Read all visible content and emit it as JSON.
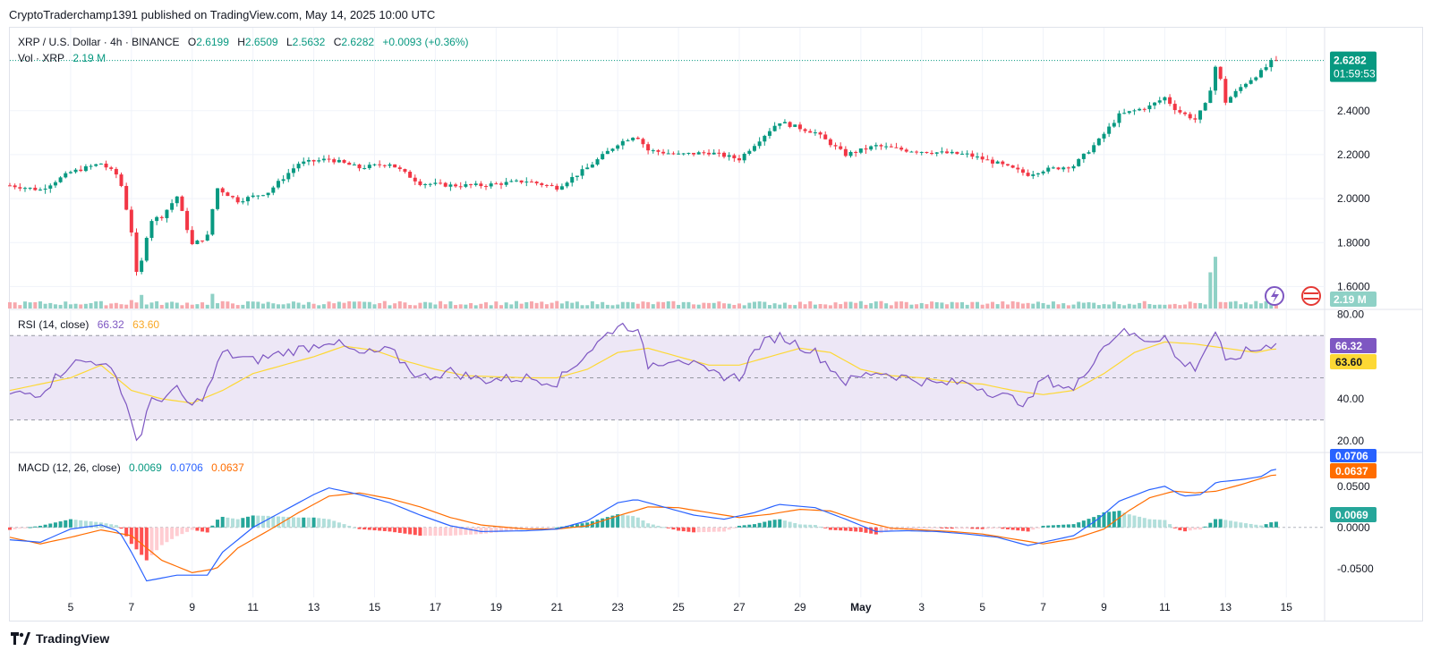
{
  "header": {
    "publisher_line": "CryptoTraderchamp1391 published on TradingView.com, May 14, 2025 10:00 UTC"
  },
  "footer": {
    "brand": "TradingView"
  },
  "colors": {
    "up": "#089981",
    "down": "#F23645",
    "vol_up": "#8fd1c6",
    "vol_down": "#f7a8ad",
    "rsi_line": "#7e57c2",
    "rsi_ma": "#fdd835",
    "rsi_band": "#ede7f6",
    "macd_line": "#2962ff",
    "signal_line": "#ff6d00",
    "hist_up_strong": "#26a69a",
    "hist_up_weak": "#b2dfdb",
    "hist_down_strong": "#ff5252",
    "hist_down_weak": "#ffcdd2",
    "grid": "#f0f3fa",
    "axis_text": "#131722"
  },
  "legend": {
    "symbol": "XRP / U.S. Dollar · 4h · BINANCE",
    "o_label": "O",
    "o_value": "2.6199",
    "h_label": "H",
    "h_value": "2.6509",
    "l_label": "L",
    "l_value": "2.5632",
    "c_label": "C",
    "c_value": "2.6282",
    "change": "+0.0093 (+0.36%)",
    "vol_label": "Vol · XRP",
    "vol_value": "2.19 M"
  },
  "rsi_legend": {
    "label": "RSI (14, close)",
    "value": "66.32",
    "ma_value": "63.60"
  },
  "macd_legend": {
    "label": "MACD (12, 26, close)",
    "hist_value": "0.0069",
    "macd_value": "0.0706",
    "signal_value": "0.0637"
  },
  "price_badge": {
    "value": "2.6282",
    "countdown": "01:59:53"
  },
  "vol_badge": "2.19 M",
  "rsi_badges": {
    "rsi": "66.32",
    "ma": "63.60"
  },
  "macd_badges": {
    "macd": "0.0706",
    "signal": "0.0637",
    "hist": "0.0069"
  },
  "chart_data": [
    {
      "type": "candlestick",
      "title": "XRP / U.S. Dollar · 4h · BINANCE",
      "y_ticks": [
        "2.4000",
        "2.2000",
        "2.0000",
        "1.8000",
        "1.6000"
      ],
      "ylim": [
        1.5,
        2.7
      ],
      "x_ticks": [
        "5",
        "7",
        "9",
        "11",
        "13",
        "15",
        "17",
        "19",
        "21",
        "23",
        "25",
        "27",
        "29",
        "May",
        "3",
        "5",
        "7",
        "9",
        "11",
        "13",
        "15"
      ],
      "x_tick_days": [
        5,
        7,
        9,
        11,
        13,
        15,
        17,
        19,
        21,
        23,
        25,
        27,
        29,
        31,
        33,
        35,
        37,
        39,
        41,
        43,
        45
      ],
      "x_range_days": [
        3.0,
        46.2
      ],
      "close_anchors": [
        [
          3.0,
          2.06
        ],
        [
          4.0,
          2.04
        ],
        [
          5.0,
          2.12
        ],
        [
          6.0,
          2.16
        ],
        [
          6.6,
          2.1
        ],
        [
          7.0,
          1.85
        ],
        [
          7.2,
          1.62
        ],
        [
          7.6,
          1.9
        ],
        [
          8.0,
          1.92
        ],
        [
          8.5,
          2.01
        ],
        [
          9.0,
          1.79
        ],
        [
          9.5,
          1.83
        ],
        [
          9.8,
          2.05
        ],
        [
          10.5,
          1.99
        ],
        [
          11.5,
          2.03
        ],
        [
          12.5,
          2.16
        ],
        [
          13.5,
          2.18
        ],
        [
          14.5,
          2.14
        ],
        [
          15.5,
          2.16
        ],
        [
          16.5,
          2.07
        ],
        [
          17.5,
          2.06
        ],
        [
          18.5,
          2.06
        ],
        [
          20.0,
          2.08
        ],
        [
          21.0,
          2.05
        ],
        [
          22.0,
          2.14
        ],
        [
          23.0,
          2.25
        ],
        [
          23.6,
          2.29
        ],
        [
          24.0,
          2.22
        ],
        [
          25.0,
          2.2
        ],
        [
          26.0,
          2.21
        ],
        [
          27.0,
          2.18
        ],
        [
          27.6,
          2.26
        ],
        [
          28.3,
          2.35
        ],
        [
          29.5,
          2.3
        ],
        [
          30.5,
          2.2
        ],
        [
          31.5,
          2.24
        ],
        [
          32.5,
          2.22
        ],
        [
          33.5,
          2.21
        ],
        [
          34.5,
          2.2
        ],
        [
          35.5,
          2.16
        ],
        [
          36.5,
          2.11
        ],
        [
          37.0,
          2.13
        ],
        [
          38.0,
          2.15
        ],
        [
          38.8,
          2.26
        ],
        [
          39.5,
          2.38
        ],
        [
          40.5,
          2.42
        ],
        [
          41.0,
          2.46
        ],
        [
          41.4,
          2.4
        ],
        [
          42.0,
          2.36
        ],
        [
          42.4,
          2.44
        ],
        [
          42.7,
          2.62
        ],
        [
          43.0,
          2.44
        ],
        [
          43.6,
          2.52
        ],
        [
          44.2,
          2.58
        ],
        [
          44.55,
          2.6282
        ]
      ],
      "last_close": 2.6282
    },
    {
      "type": "bar",
      "title": "Vol · XRP",
      "spikes": [
        [
          7.0,
          1.6
        ],
        [
          7.3,
          2.5
        ],
        [
          9.7,
          2.3
        ],
        [
          42.5,
          5.0
        ],
        [
          42.7,
          9.0
        ]
      ],
      "last_value": "2.19 M"
    },
    {
      "type": "line",
      "title": "RSI (14, close)",
      "y_ticks": [
        "80.00",
        "40.00",
        "20.00"
      ],
      "ylim": [
        15,
        82
      ],
      "bands": [
        70,
        50,
        30
      ],
      "series": [
        {
          "name": "RSI",
          "anchors": [
            [
              3.0,
              42
            ],
            [
              4.0,
              43
            ],
            [
              5.0,
              57
            ],
            [
              6.0,
              58
            ],
            [
              6.6,
              48
            ],
            [
              7.0,
              30
            ],
            [
              7.2,
              18
            ],
            [
              7.6,
              38
            ],
            [
              8.5,
              44
            ],
            [
              9.0,
              36
            ],
            [
              9.5,
              44
            ],
            [
              10.0,
              62
            ],
            [
              11.0,
              58
            ],
            [
              12.0,
              62
            ],
            [
              13.0,
              65
            ],
            [
              13.5,
              68
            ],
            [
              14.5,
              61
            ],
            [
              15.5,
              63
            ],
            [
              16.5,
              50
            ],
            [
              17.5,
              53
            ],
            [
              18.5,
              49
            ],
            [
              20.0,
              50
            ],
            [
              21.0,
              48
            ],
            [
              22.0,
              62
            ],
            [
              23.0,
              75
            ],
            [
              23.6,
              74
            ],
            [
              24.0,
              56
            ],
            [
              25.0,
              60
            ],
            [
              26.0,
              52
            ],
            [
              27.0,
              50
            ],
            [
              27.6,
              65
            ],
            [
              28.3,
              70
            ],
            [
              29.5,
              62
            ],
            [
              30.5,
              48
            ],
            [
              31.5,
              53
            ],
            [
              32.5,
              50
            ],
            [
              33.5,
              47
            ],
            [
              34.5,
              48
            ],
            [
              35.5,
              42
            ],
            [
              36.5,
              38
            ],
            [
              37.0,
              50
            ],
            [
              38.0,
              44
            ],
            [
              38.8,
              62
            ],
            [
              39.5,
              72
            ],
            [
              40.5,
              68
            ],
            [
              41.0,
              70
            ],
            [
              41.4,
              58
            ],
            [
              42.0,
              55
            ],
            [
              42.4,
              65
            ],
            [
              42.7,
              73
            ],
            [
              43.0,
              56
            ],
            [
              43.6,
              62
            ],
            [
              44.2,
              64
            ],
            [
              44.55,
              66.32
            ]
          ]
        },
        {
          "name": "RSI-based MA",
          "anchors": [
            [
              3.0,
              44
            ],
            [
              5.0,
              50
            ],
            [
              6.0,
              56
            ],
            [
              7.0,
              44
            ],
            [
              8.0,
              40
            ],
            [
              9.0,
              38
            ],
            [
              10.0,
              44
            ],
            [
              11.0,
              52
            ],
            [
              12.0,
              56
            ],
            [
              13.0,
              60
            ],
            [
              14.0,
              65
            ],
            [
              15.0,
              63
            ],
            [
              16.0,
              58
            ],
            [
              17.0,
              54
            ],
            [
              18.0,
              51
            ],
            [
              20.0,
              50
            ],
            [
              21.0,
              50
            ],
            [
              22.0,
              54
            ],
            [
              23.0,
              62
            ],
            [
              24.0,
              64
            ],
            [
              25.0,
              60
            ],
            [
              26.0,
              56
            ],
            [
              27.0,
              56
            ],
            [
              28.0,
              60
            ],
            [
              29.0,
              64
            ],
            [
              30.0,
              62
            ],
            [
              31.0,
              54
            ],
            [
              32.0,
              51
            ],
            [
              33.0,
              50
            ],
            [
              34.0,
              48
            ],
            [
              35.0,
              47
            ],
            [
              36.0,
              44
            ],
            [
              37.0,
              42
            ],
            [
              38.0,
              44
            ],
            [
              39.0,
              52
            ],
            [
              40.0,
              62
            ],
            [
              41.0,
              67
            ],
            [
              42.0,
              66
            ],
            [
              43.0,
              64
            ],
            [
              44.0,
              62
            ],
            [
              44.55,
              63.6
            ]
          ]
        }
      ],
      "last_values": {
        "RSI": "66.32",
        "MA": "63.60"
      }
    },
    {
      "type": "line",
      "title": "MACD (12, 26, close)",
      "y_ticks": [
        "0.0500",
        "0.0000",
        "-0.0500"
      ],
      "ylim": [
        -0.085,
        0.09
      ],
      "series": [
        {
          "name": "MACD",
          "anchors": [
            [
              3.0,
              -0.015
            ],
            [
              4.0,
              -0.018
            ],
            [
              5.0,
              -0.002
            ],
            [
              6.0,
              0.003
            ],
            [
              6.6,
              -0.005
            ],
            [
              7.0,
              -0.03
            ],
            [
              7.5,
              -0.065
            ],
            [
              8.5,
              -0.058
            ],
            [
              9.5,
              -0.058
            ],
            [
              10.0,
              -0.03
            ],
            [
              11.0,
              0.0
            ],
            [
              12.0,
              0.02
            ],
            [
              13.0,
              0.04
            ],
            [
              13.5,
              0.048
            ],
            [
              14.5,
              0.04
            ],
            [
              15.5,
              0.03
            ],
            [
              16.5,
              0.015
            ],
            [
              17.5,
              0.002
            ],
            [
              18.5,
              -0.005
            ],
            [
              20.0,
              -0.004
            ],
            [
              21.0,
              -0.002
            ],
            [
              22.0,
              0.008
            ],
            [
              23.0,
              0.03
            ],
            [
              23.6,
              0.034
            ],
            [
              24.5,
              0.025
            ],
            [
              25.5,
              0.015
            ],
            [
              26.5,
              0.01
            ],
            [
              27.5,
              0.018
            ],
            [
              28.3,
              0.028
            ],
            [
              29.5,
              0.024
            ],
            [
              30.5,
              0.01
            ],
            [
              31.5,
              -0.005
            ],
            [
              32.5,
              -0.004
            ],
            [
              33.5,
              -0.005
            ],
            [
              34.5,
              -0.008
            ],
            [
              35.5,
              -0.012
            ],
            [
              36.5,
              -0.022
            ],
            [
              37.0,
              -0.018
            ],
            [
              38.0,
              -0.01
            ],
            [
              38.8,
              0.01
            ],
            [
              39.5,
              0.032
            ],
            [
              40.5,
              0.046
            ],
            [
              41.0,
              0.05
            ],
            [
              41.6,
              0.038
            ],
            [
              42.2,
              0.04
            ],
            [
              42.7,
              0.055
            ],
            [
              43.5,
              0.058
            ],
            [
              44.2,
              0.062
            ],
            [
              44.55,
              0.0706
            ]
          ]
        },
        {
          "name": "Signal",
          "anchors": [
            [
              3.0,
              -0.012
            ],
            [
              4.0,
              -0.02
            ],
            [
              5.0,
              -0.012
            ],
            [
              6.0,
              -0.003
            ],
            [
              7.0,
              -0.01
            ],
            [
              8.0,
              -0.04
            ],
            [
              9.0,
              -0.055
            ],
            [
              9.8,
              -0.05
            ],
            [
              10.5,
              -0.025
            ],
            [
              11.5,
              -0.004
            ],
            [
              12.5,
              0.018
            ],
            [
              13.5,
              0.038
            ],
            [
              14.5,
              0.042
            ],
            [
              15.5,
              0.035
            ],
            [
              16.5,
              0.025
            ],
            [
              17.5,
              0.012
            ],
            [
              18.5,
              0.003
            ],
            [
              20.0,
              -0.002
            ],
            [
              21.0,
              -0.002
            ],
            [
              22.0,
              0.002
            ],
            [
              23.0,
              0.014
            ],
            [
              24.0,
              0.025
            ],
            [
              25.0,
              0.024
            ],
            [
              26.0,
              0.018
            ],
            [
              27.0,
              0.012
            ],
            [
              28.0,
              0.016
            ],
            [
              29.0,
              0.022
            ],
            [
              30.0,
              0.02
            ],
            [
              31.0,
              0.008
            ],
            [
              32.0,
              -0.001
            ],
            [
              33.0,
              -0.003
            ],
            [
              34.0,
              -0.005
            ],
            [
              35.0,
              -0.008
            ],
            [
              36.0,
              -0.014
            ],
            [
              37.0,
              -0.02
            ],
            [
              38.0,
              -0.014
            ],
            [
              39.0,
              -0.002
            ],
            [
              39.8,
              0.02
            ],
            [
              40.5,
              0.036
            ],
            [
              41.3,
              0.044
            ],
            [
              42.0,
              0.042
            ],
            [
              42.7,
              0.044
            ],
            [
              43.5,
              0.052
            ],
            [
              44.55,
              0.0637
            ]
          ]
        }
      ],
      "histogram": {
        "name": "Histogram",
        "last_value": 0.0069
      },
      "last_values": {
        "MACD": "0.0706",
        "Signal": "0.0637",
        "Histogram": "0.0069"
      }
    }
  ]
}
